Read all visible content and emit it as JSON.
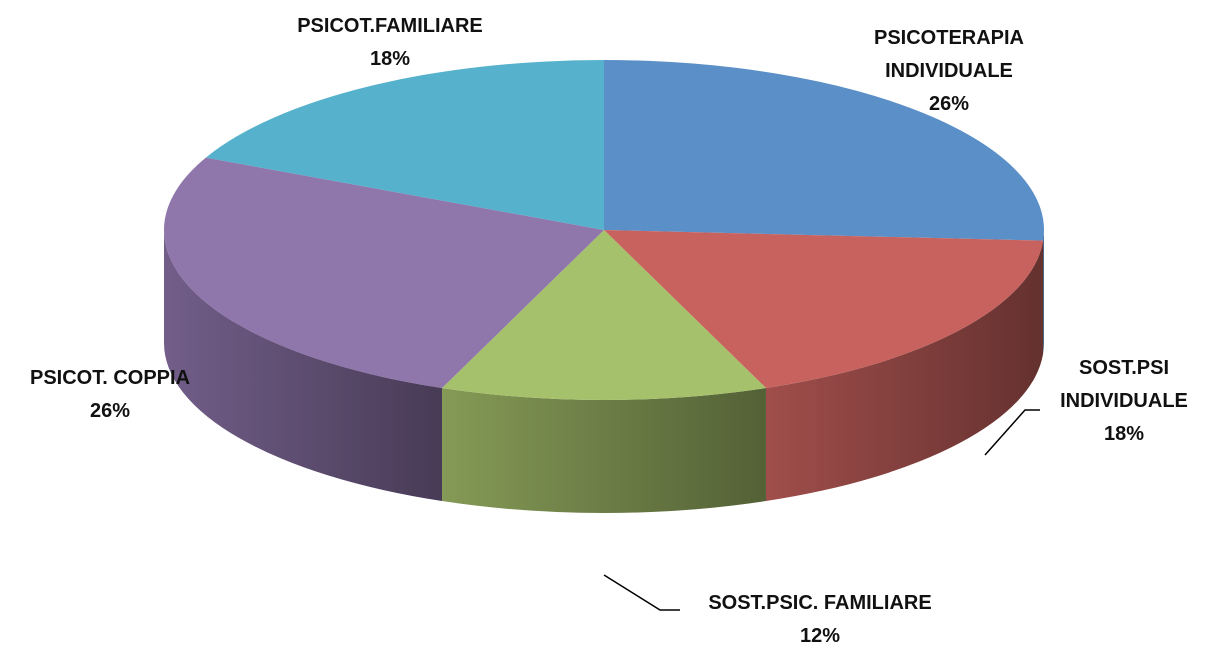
{
  "chart_data": {
    "type": "pie3d",
    "categories": [
      "PSICOTERAPIA INDIVIDUALE",
      "SOST.PSI INDIVIDUALE",
      "SOST.PSIC. FAMILIARE",
      "PSICOT. COPPIA",
      "PSICOT.FAMILIARE"
    ],
    "values": [
      26,
      18,
      12,
      26,
      18
    ],
    "value_labels": [
      "26%",
      "18%",
      "12%",
      "26%",
      "18%"
    ],
    "colors": [
      "#5b8fc7",
      "#c8625e",
      "#a6c16b",
      "#8f76ab",
      "#55b1cc"
    ]
  }
}
